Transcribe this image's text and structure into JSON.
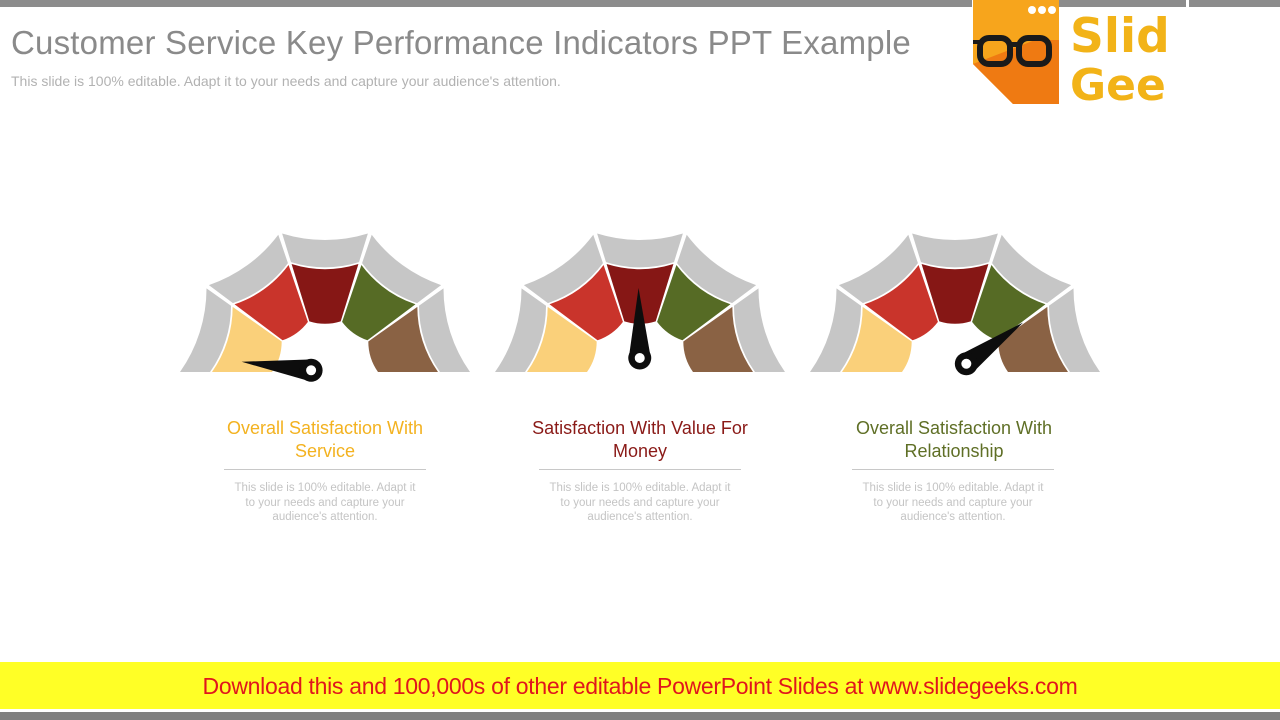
{
  "slide": {
    "title": "Customer Service Key Performance Indicators PPT Example",
    "subtitle": "This slide is 100% editable. Adapt it to your needs and capture your audience's attention."
  },
  "logo": {
    "line1": "Slide",
    "line2": "Geeks",
    "icon": "glasses-icon",
    "colors": {
      "box": "#f7a51c",
      "text": "#f2b318",
      "shadow": "#ef7a12"
    }
  },
  "segment_colors": [
    "#fad07a",
    "#c9342b",
    "#861715",
    "#566b25",
    "#8a6244"
  ],
  "outer_color": "#c6c6c6",
  "kpis": [
    {
      "title": "Overall Satisfaction With Service",
      "title_color": "#f3b220",
      "desc": "This slide is 100% editable. Adapt it to your needs and capture your audience's attention.",
      "needle_angle_deg": 173
    },
    {
      "title": "Satisfaction With Value For Money",
      "title_color": "#8a1a17",
      "desc": "This slide is 100% editable. Adapt it to your needs and capture your audience's attention.",
      "needle_angle_deg": 91
    },
    {
      "title": "Overall Satisfaction With Relationship",
      "title_color": "#5f6f26",
      "desc": "This slide is 100% editable. Adapt it to your needs and capture your audience's attention.",
      "needle_angle_deg": 36
    }
  ],
  "footer": {
    "text": "Download this and 100,000s of other editable PowerPoint Slides at www.slidegeeks.com"
  }
}
